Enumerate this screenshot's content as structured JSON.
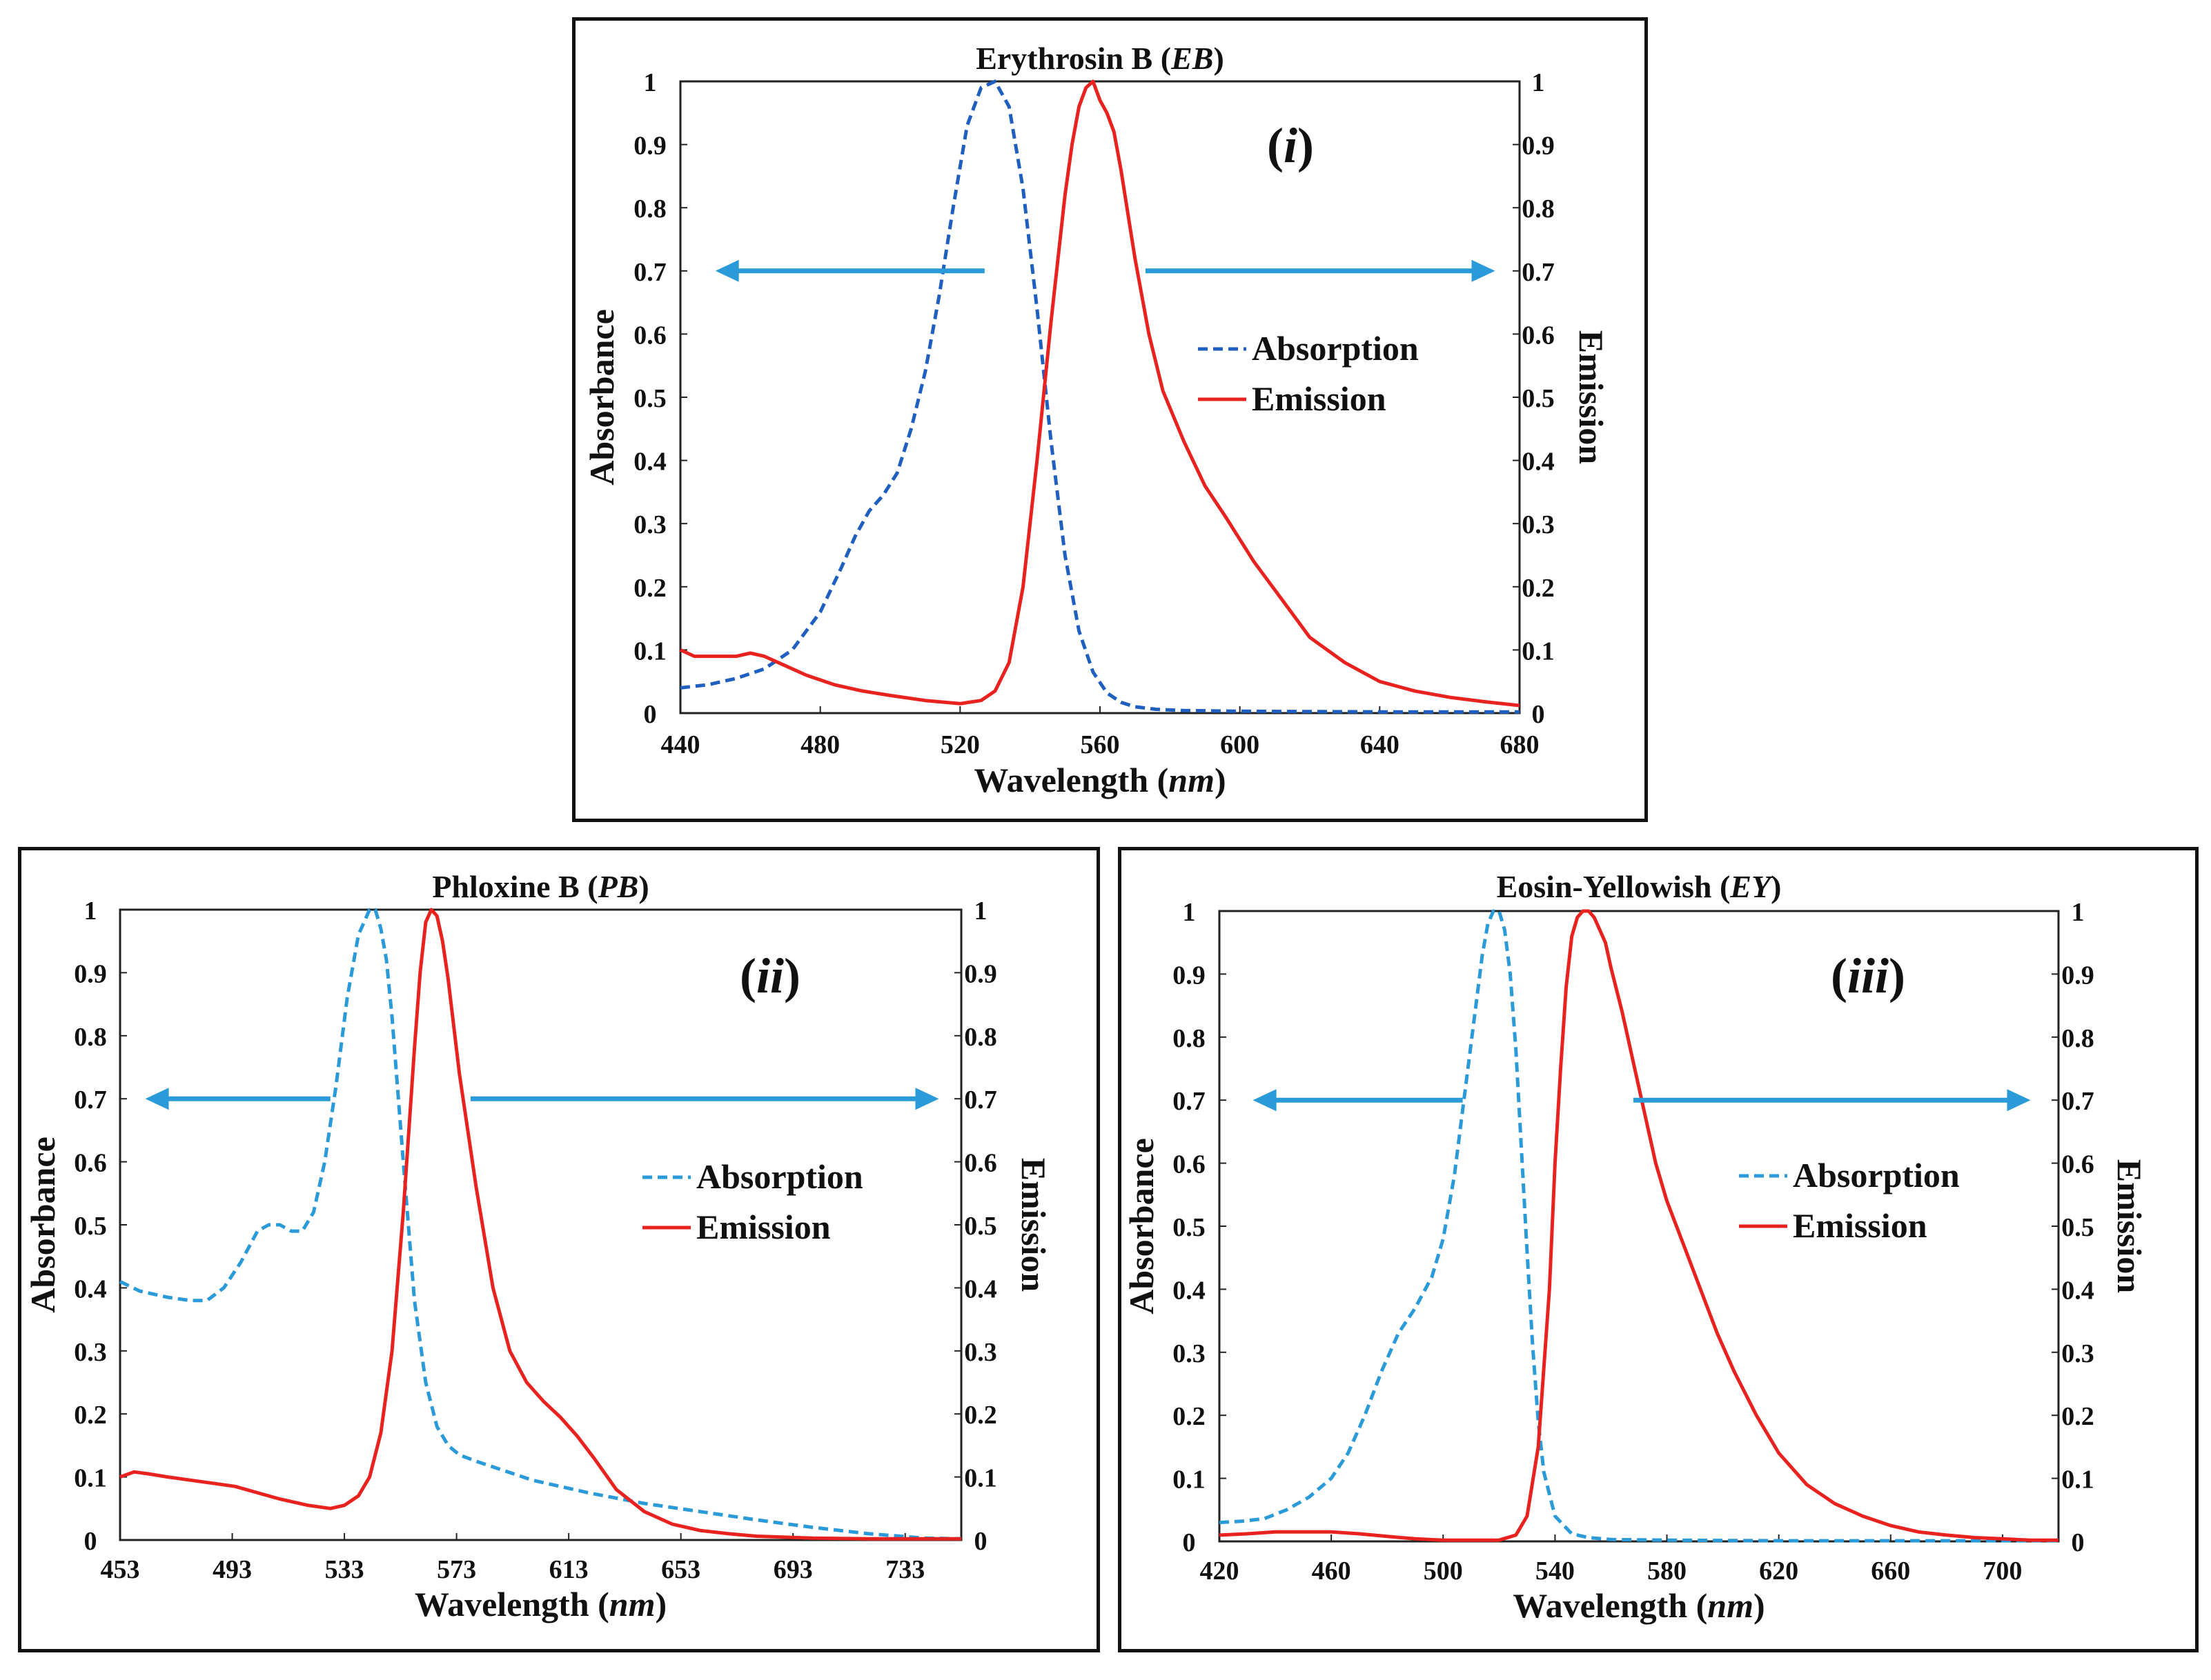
{
  "charts": [
    {
      "title": "Erythrosin B",
      "title_abbr": "EB",
      "label": "(i)",
      "label_roman": "i",
      "xlabel": "Wavelength",
      "xunit": "nm",
      "ylabel_left": "Absorbance",
      "ylabel_right": "Emission"
    },
    {
      "title": "Phloxine B",
      "title_abbr": "PB",
      "label": "(ii)",
      "label_roman": "ii",
      "xlabel": "Wavelength",
      "xunit": "nm",
      "ylabel_left": "Absorbance",
      "ylabel_right": "Emission"
    },
    {
      "title": "Eosin-Yellowish",
      "title_abbr": "EY",
      "label": "(iii)",
      "label_roman": "iii",
      "xlabel": "Wavelength",
      "xunit": "nm",
      "ylabel_left": "Absorbance",
      "ylabel_right": "Emission"
    }
  ],
  "chart_data": [
    {
      "type": "line",
      "title": "Erythrosin B (EB)",
      "xlabel": "Wavelength (nm)",
      "ylabel": "Absorbance",
      "y2label": "Emission",
      "xlim": [
        440,
        680
      ],
      "ylim": [
        0,
        1
      ],
      "xticks": [
        440,
        480,
        520,
        560,
        600,
        640,
        680
      ],
      "yticks": [
        "0",
        "0.1",
        "0.2",
        "0.3",
        "0.4",
        "0.5",
        "0.6",
        "0.7",
        "0.8",
        "0.9",
        "1"
      ],
      "legend_position": "right-middle",
      "series": [
        {
          "name": "Absorption",
          "style": "dashed",
          "color": "#1f5fbf",
          "x": [
            440,
            448,
            456,
            464,
            472,
            480,
            486,
            490,
            494,
            498,
            502,
            506,
            510,
            514,
            518,
            522,
            526,
            530,
            534,
            538,
            542,
            546,
            550,
            554,
            558,
            562,
            566,
            570,
            576,
            584,
            600,
            640,
            680
          ],
          "y": [
            0.04,
            0.045,
            0.055,
            0.07,
            0.1,
            0.16,
            0.23,
            0.28,
            0.32,
            0.345,
            0.38,
            0.45,
            0.54,
            0.66,
            0.8,
            0.93,
            0.99,
            1.0,
            0.96,
            0.83,
            0.64,
            0.43,
            0.25,
            0.13,
            0.065,
            0.032,
            0.017,
            0.01,
            0.006,
            0.004,
            0.003,
            0.002,
            0.002
          ]
        },
        {
          "name": "Emission",
          "style": "solid",
          "color": "#e8231f",
          "x": [
            440,
            444,
            448,
            452,
            456,
            460,
            464,
            470,
            476,
            484,
            492,
            500,
            510,
            520,
            526,
            530,
            534,
            538,
            542,
            546,
            550,
            552,
            554,
            556,
            558,
            560,
            562,
            564,
            566,
            570,
            574,
            578,
            584,
            590,
            596,
            604,
            612,
            620,
            630,
            640,
            650,
            660,
            670,
            680
          ],
          "y": [
            0.1,
            0.09,
            0.09,
            0.09,
            0.09,
            0.095,
            0.09,
            0.075,
            0.06,
            0.045,
            0.035,
            0.028,
            0.02,
            0.015,
            0.02,
            0.035,
            0.08,
            0.2,
            0.4,
            0.62,
            0.82,
            0.9,
            0.96,
            0.99,
            1.0,
            0.97,
            0.95,
            0.92,
            0.86,
            0.72,
            0.6,
            0.51,
            0.43,
            0.36,
            0.31,
            0.24,
            0.18,
            0.12,
            0.08,
            0.05,
            0.035,
            0.025,
            0.018,
            0.012
          ]
        }
      ],
      "arrows": [
        {
          "direction": "left",
          "x_from": 527,
          "x_to": 450,
          "y": 0.7
        },
        {
          "direction": "right",
          "x_from": 573,
          "x_to": 673,
          "y": 0.7
        }
      ]
    },
    {
      "type": "line",
      "title": "Phloxine B (PB)",
      "xlabel": "Wavelength (nm)",
      "ylabel": "Absorbance",
      "y2label": "Emission",
      "xlim": [
        453,
        753
      ],
      "ylim": [
        0,
        1
      ],
      "xticks": [
        453,
        493,
        533,
        573,
        613,
        653,
        693,
        733
      ],
      "yticks": [
        "0",
        "0.1",
        "0.2",
        "0.3",
        "0.4",
        "0.5",
        "0.6",
        "0.7",
        "0.8",
        "0.9",
        "1"
      ],
      "legend_position": "right-middle",
      "series": [
        {
          "name": "Absorption",
          "style": "dashed",
          "color": "#2a9ad8",
          "x": [
            453,
            460,
            470,
            478,
            484,
            490,
            496,
            502,
            506,
            510,
            514,
            518,
            522,
            526,
            530,
            534,
            538,
            542,
            544,
            546,
            548,
            550,
            554,
            558,
            562,
            566,
            570,
            574,
            580,
            590,
            600,
            620,
            640,
            660,
            680,
            700,
            720,
            740,
            753
          ],
          "y": [
            0.41,
            0.395,
            0.385,
            0.38,
            0.38,
            0.4,
            0.44,
            0.49,
            0.5,
            0.5,
            0.49,
            0.49,
            0.52,
            0.6,
            0.72,
            0.86,
            0.96,
            1.0,
            1.0,
            0.97,
            0.92,
            0.83,
            0.6,
            0.38,
            0.25,
            0.18,
            0.15,
            0.135,
            0.125,
            0.11,
            0.095,
            0.075,
            0.058,
            0.045,
            0.032,
            0.02,
            0.01,
            0.003,
            0.002
          ]
        },
        {
          "name": "Emission",
          "style": "solid",
          "color": "#e8231f",
          "x": [
            453,
            458,
            463,
            470,
            478,
            486,
            494,
            502,
            510,
            520,
            528,
            533,
            538,
            542,
            546,
            550,
            554,
            558,
            560,
            562,
            564,
            566,
            568,
            570,
            574,
            580,
            586,
            592,
            598,
            604,
            610,
            616,
            622,
            630,
            640,
            650,
            660,
            670,
            680,
            700,
            720,
            740,
            753
          ],
          "y": [
            0.1,
            0.108,
            0.105,
            0.1,
            0.095,
            0.09,
            0.085,
            0.075,
            0.065,
            0.055,
            0.05,
            0.055,
            0.07,
            0.1,
            0.17,
            0.3,
            0.52,
            0.78,
            0.9,
            0.98,
            1.0,
            0.99,
            0.95,
            0.89,
            0.74,
            0.56,
            0.4,
            0.3,
            0.25,
            0.22,
            0.195,
            0.165,
            0.13,
            0.08,
            0.045,
            0.025,
            0.015,
            0.01,
            0.006,
            0.003,
            0.002,
            0.002,
            0.002
          ]
        }
      ],
      "arrows": [
        {
          "direction": "left",
          "x_from": 528,
          "x_to": 462,
          "y": 0.7
        },
        {
          "direction": "right",
          "x_from": 578,
          "x_to": 745,
          "y": 0.7
        }
      ]
    },
    {
      "type": "line",
      "title": "Eosin-Yellowish (EY)",
      "xlabel": "Wavelength (nm)",
      "ylabel": "Absorbance",
      "y2label": "Emission",
      "xlim": [
        420,
        720
      ],
      "ylim": [
        0,
        1
      ],
      "xticks": [
        420,
        460,
        500,
        540,
        580,
        620,
        660,
        700
      ],
      "yticks": [
        "0",
        "0.1",
        "0.2",
        "0.3",
        "0.4",
        "0.5",
        "0.6",
        "0.7",
        "0.8",
        "0.9",
        "1"
      ],
      "legend_position": "right-middle",
      "series": [
        {
          "name": "Absorption",
          "style": "dashed",
          "color": "#2a9ad8",
          "x": [
            420,
            428,
            436,
            444,
            452,
            460,
            466,
            472,
            478,
            484,
            490,
            496,
            500,
            504,
            508,
            512,
            514,
            516,
            518,
            520,
            522,
            524,
            526,
            528,
            530,
            532,
            534,
            536,
            540,
            546,
            552,
            560,
            580,
            620,
            660,
            700,
            720
          ],
          "y": [
            0.03,
            0.032,
            0.036,
            0.05,
            0.07,
            0.1,
            0.14,
            0.2,
            0.27,
            0.33,
            0.37,
            0.42,
            0.48,
            0.58,
            0.72,
            0.86,
            0.93,
            0.98,
            1.0,
            1.0,
            0.97,
            0.9,
            0.78,
            0.62,
            0.46,
            0.31,
            0.19,
            0.11,
            0.04,
            0.012,
            0.006,
            0.003,
            0.002,
            0.001,
            0.001,
            0.001,
            0.001
          ]
        },
        {
          "name": "Emission",
          "style": "solid",
          "color": "#e8231f",
          "x": [
            420,
            430,
            440,
            450,
            460,
            470,
            480,
            490,
            500,
            510,
            520,
            526,
            530,
            534,
            538,
            540,
            542,
            544,
            546,
            548,
            550,
            552,
            554,
            556,
            558,
            560,
            564,
            568,
            572,
            576,
            580,
            586,
            592,
            598,
            604,
            612,
            620,
            630,
            640,
            650,
            660,
            670,
            680,
            690,
            700,
            710,
            720
          ],
          "y": [
            0.01,
            0.012,
            0.015,
            0.015,
            0.015,
            0.012,
            0.008,
            0.004,
            0.002,
            0.002,
            0.002,
            0.01,
            0.04,
            0.15,
            0.4,
            0.6,
            0.75,
            0.88,
            0.96,
            0.99,
            1.0,
            1.0,
            0.99,
            0.97,
            0.95,
            0.91,
            0.84,
            0.76,
            0.68,
            0.6,
            0.54,
            0.47,
            0.4,
            0.33,
            0.27,
            0.2,
            0.14,
            0.09,
            0.06,
            0.04,
            0.025,
            0.015,
            0.01,
            0.006,
            0.004,
            0.002,
            0.002
          ]
        }
      ],
      "arrows": [
        {
          "direction": "left",
          "x_from": 507,
          "x_to": 432,
          "y": 0.7
        },
        {
          "direction": "right",
          "x_from": 568,
          "x_to": 710,
          "y": 0.7
        }
      ]
    }
  ]
}
